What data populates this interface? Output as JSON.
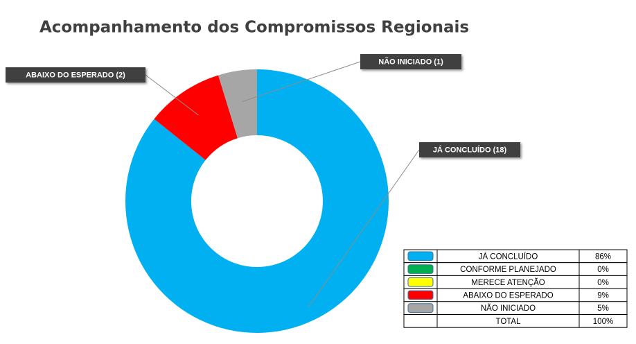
{
  "chart_data": {
    "type": "donut",
    "title": "Acompanhamento dos Compromissos Regionais",
    "categories": [
      "JÁ CONCLUÍDO",
      "ABAIXO DO ESPERADO",
      "NÃO INICIADO"
    ],
    "values": [
      18,
      2,
      1
    ],
    "value_labels": [
      "JÁ CONCLUÍDO (18)",
      "ABAIXO DO ESPERADO (2)",
      "NÃO INICIADO (1)"
    ],
    "colors": [
      "#00b0f0",
      "#ff0000",
      "#a6a6a6"
    ]
  },
  "table": {
    "rows": [
      {
        "color": "#00b0f0",
        "label": "JÁ CONCLUÍDO",
        "value": "86%"
      },
      {
        "color": "#00b050",
        "label": "CONFORME PLANEJADO",
        "value": "0%"
      },
      {
        "color": "#ffff00",
        "label": "MERECE ATENÇÃO",
        "value": "0%"
      },
      {
        "color": "#ff0000",
        "label": "ABAIXO DO ESPERADO",
        "value": "9%"
      },
      {
        "color": "#a6a6a6",
        "label": "NÃO INICIADO",
        "value": "5%"
      },
      {
        "label": "TOTAL",
        "value": "100%"
      }
    ]
  }
}
